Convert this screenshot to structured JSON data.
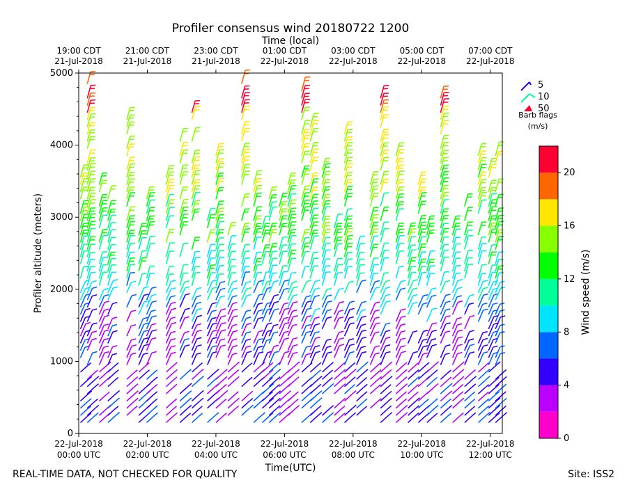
{
  "chart_data": {
    "type": "wind-barb",
    "title": "Profiler consensus wind 20180722 1200",
    "top_axis_label": "Time (local)",
    "xlabel": "Time(UTC)",
    "ylabel": "Profiler altitude (meters)",
    "ylim": [
      0,
      5000
    ],
    "xlim_hours_utc": [
      0,
      12.35
    ],
    "y_ticks": [
      0,
      1000,
      2000,
      3000,
      4000,
      5000
    ],
    "x_ticks": [
      {
        "hour": 0,
        "time": "22-Jul-2018",
        "zone": "00:00 UTC"
      },
      {
        "hour": 2,
        "time": "22-Jul-2018",
        "zone": "02:00 UTC"
      },
      {
        "hour": 4,
        "time": "22-Jul-2018",
        "zone": "04:00 UTC"
      },
      {
        "hour": 6,
        "time": "22-Jul-2018",
        "zone": "06:00 UTC"
      },
      {
        "hour": 8,
        "time": "22-Jul-2018",
        "zone": "08:00 UTC"
      },
      {
        "hour": 10,
        "time": "22-Jul-2018",
        "zone": "10:00 UTC"
      },
      {
        "hour": 12,
        "time": "22-Jul-2018",
        "zone": "12:00 UTC"
      }
    ],
    "top_ticks": [
      {
        "hour": 0,
        "time": "19:00 CDT",
        "date": "21-Jul-2018"
      },
      {
        "hour": 2,
        "time": "21:00 CDT",
        "date": "21-Jul-2018"
      },
      {
        "hour": 4,
        "time": "23:00 CDT",
        "date": "21-Jul-2018"
      },
      {
        "hour": 6,
        "time": "01:00 CDT",
        "date": "22-Jul-2018"
      },
      {
        "hour": 8,
        "time": "03:00 CDT",
        "date": "22-Jul-2018"
      },
      {
        "hour": 10,
        "time": "05:00 CDT",
        "date": "22-Jul-2018"
      },
      {
        "hour": 12,
        "time": "07:00 CDT",
        "date": "22-Jul-2018"
      }
    ],
    "legend": {
      "title_line1": "Barb flags",
      "title_line2": "(m/s)",
      "entries": [
        {
          "label": "5",
          "color": "#3300ee"
        },
        {
          "label": "10",
          "color": "#00ff99"
        },
        {
          "label": "50",
          "color": "#ff0033"
        }
      ]
    },
    "colorbar": {
      "label": "Wind speed (m/s)",
      "range": [
        0,
        22
      ],
      "ticks": [
        0,
        4,
        8,
        12,
        16,
        20
      ],
      "bins": [
        {
          "from": 0,
          "to": 2,
          "color": "#ff00cc"
        },
        {
          "from": 2,
          "to": 4,
          "color": "#bb00ff"
        },
        {
          "from": 4,
          "to": 6,
          "color": "#3300ff"
        },
        {
          "from": 6,
          "to": 8,
          "color": "#0066ff"
        },
        {
          "from": 8,
          "to": 10,
          "color": "#00e5ff"
        },
        {
          "from": 10,
          "to": 12,
          "color": "#00ff99"
        },
        {
          "from": 12,
          "to": 14,
          "color": "#00ff00"
        },
        {
          "from": 14,
          "to": 16,
          "color": "#88ff00"
        },
        {
          "from": 16,
          "to": 18,
          "color": "#ffe600"
        },
        {
          "from": 18,
          "to": 20,
          "color": "#ff6600"
        },
        {
          "from": 20,
          "to": 22,
          "color": "#ff0033"
        }
      ]
    },
    "time_columns_hours_utc": [
      0.05,
      0.25,
      0.6,
      0.85,
      1.4,
      1.75,
      1.98,
      2.55,
      2.95,
      3.3,
      3.75,
      4.0,
      4.35,
      4.75,
      5.1,
      5.35,
      5.55,
      5.85,
      6.1,
      6.5,
      6.75,
      7.1,
      7.45,
      7.75,
      8.1,
      8.5,
      8.8,
      9.25,
      9.6,
      9.9,
      10.15,
      10.55,
      10.9,
      11.25,
      11.65,
      11.95,
      12.15
    ],
    "speed_profile": [
      {
        "alt_min": 100,
        "alt_max": 400,
        "speed": 6
      },
      {
        "alt_min": 400,
        "alt_max": 900,
        "speed": 5
      },
      {
        "alt_min": 900,
        "alt_max": 1500,
        "speed": 5
      },
      {
        "alt_min": 1500,
        "alt_max": 1800,
        "speed": 7
      },
      {
        "alt_min": 1800,
        "alt_max": 2100,
        "speed": 9
      },
      {
        "alt_min": 2100,
        "alt_max": 2600,
        "speed": 11
      },
      {
        "alt_min": 2600,
        "alt_max": 3200,
        "speed": 13
      },
      {
        "alt_min": 3200,
        "alt_max": 3600,
        "speed": 15
      },
      {
        "alt_min": 3600,
        "alt_max": 4400,
        "speed": 16
      },
      {
        "alt_min": 4400,
        "alt_max": 5000,
        "speed": 20
      }
    ]
  },
  "footer": {
    "left_note": "REAL-TIME DATA, NOT CHECKED FOR QUALITY",
    "site": "Site: ISS2"
  }
}
